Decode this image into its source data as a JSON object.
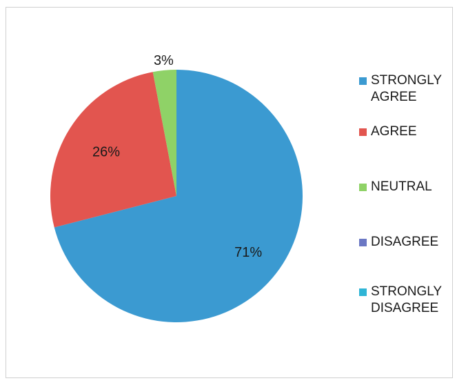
{
  "chart_data": {
    "type": "pie",
    "title": "",
    "slices": [
      {
        "label": "STRONGLY AGREE",
        "value": 71,
        "value_label": "71%",
        "color": "#3b9ad1"
      },
      {
        "label": "AGREE",
        "value": 26,
        "value_label": "26%",
        "color": "#e2554f"
      },
      {
        "label": "NEUTRAL",
        "value": 3,
        "value_label": "3%",
        "color": "#8fd267"
      },
      {
        "label": "DISAGREE",
        "value": 0,
        "value_label": "",
        "color": "#6b78c4"
      },
      {
        "label": "STRONGLY DISAGREE",
        "value": 0,
        "value_label": "",
        "color": "#2fb5d6"
      }
    ],
    "legend_position": "right"
  }
}
